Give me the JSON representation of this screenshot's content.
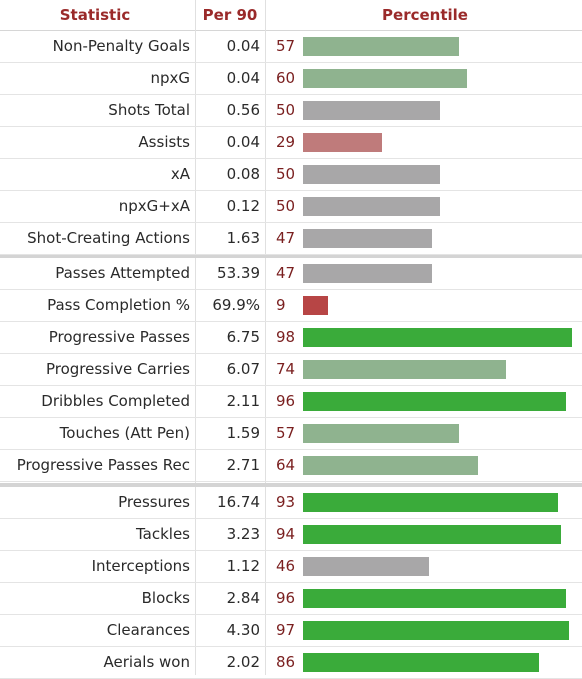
{
  "header": {
    "statistic": "Statistic",
    "per90": "Per 90",
    "percentile": "Percentile"
  },
  "colors": {
    "high": "#3aab3a",
    "above": "#8fb38f",
    "mid": "#a8a7a8",
    "low": "#bf7b7b",
    "verylow": "#b74545"
  },
  "groups": [
    {
      "rows": [
        {
          "stat": "Non-Penalty Goals",
          "per90": "0.04",
          "percentile": "57"
        },
        {
          "stat": "npxG",
          "per90": "0.04",
          "percentile": "60"
        },
        {
          "stat": "Shots Total",
          "per90": "0.56",
          "percentile": "50"
        },
        {
          "stat": "Assists",
          "per90": "0.04",
          "percentile": "29"
        },
        {
          "stat": "xA",
          "per90": "0.08",
          "percentile": "50"
        },
        {
          "stat": "npxG+xA",
          "per90": "0.12",
          "percentile": "50"
        },
        {
          "stat": "Shot-Creating Actions",
          "per90": "1.63",
          "percentile": "47"
        }
      ]
    },
    {
      "rows": [
        {
          "stat": "Passes Attempted",
          "per90": "53.39",
          "percentile": "47"
        },
        {
          "stat": "Pass Completion %",
          "per90": "69.9%",
          "percentile": "9"
        },
        {
          "stat": "Progressive Passes",
          "per90": "6.75",
          "percentile": "98"
        },
        {
          "stat": "Progressive Carries",
          "per90": "6.07",
          "percentile": "74"
        },
        {
          "stat": "Dribbles Completed",
          "per90": "2.11",
          "percentile": "96"
        },
        {
          "stat": "Touches (Att Pen)",
          "per90": "1.59",
          "percentile": "57"
        },
        {
          "stat": "Progressive Passes Rec",
          "per90": "2.71",
          "percentile": "64"
        }
      ]
    },
    {
      "rows": [
        {
          "stat": "Pressures",
          "per90": "16.74",
          "percentile": "93"
        },
        {
          "stat": "Tackles",
          "per90": "3.23",
          "percentile": "94"
        },
        {
          "stat": "Interceptions",
          "per90": "1.12",
          "percentile": "46"
        },
        {
          "stat": "Blocks",
          "per90": "2.84",
          "percentile": "96"
        },
        {
          "stat": "Clearances",
          "per90": "4.30",
          "percentile": "97"
        },
        {
          "stat": "Aerials won",
          "per90": "2.02",
          "percentile": "86"
        }
      ]
    }
  ]
}
